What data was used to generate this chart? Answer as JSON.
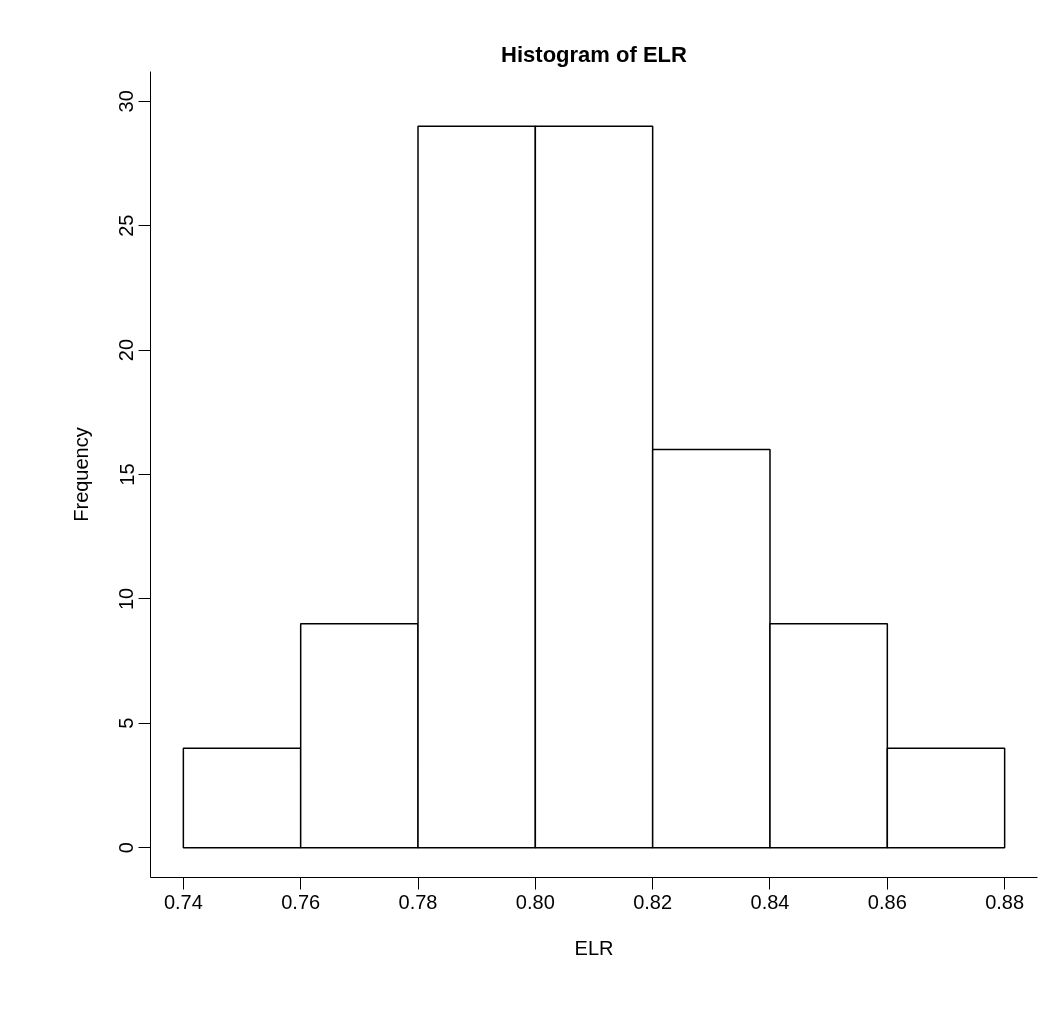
{
  "chart_data": {
    "type": "histogram",
    "title": "Histogram of ELR",
    "xlabel": "ELR",
    "ylabel": "Frequency",
    "bins": [
      0.74,
      0.76,
      0.78,
      0.8,
      0.82,
      0.84,
      0.86,
      0.88
    ],
    "values": [
      4,
      9,
      29,
      29,
      16,
      9,
      4
    ],
    "color": "#ffffff",
    "xlim": [
      0.7344,
      0.8856
    ],
    "ylim": [
      -1.2,
      31.2
    ],
    "xticks": [
      {
        "value": 0.74,
        "label": "0.74"
      },
      {
        "value": 0.76,
        "label": "0.76"
      },
      {
        "value": 0.78,
        "label": "0.78"
      },
      {
        "value": 0.8,
        "label": "0.80"
      },
      {
        "value": 0.82,
        "label": "0.82"
      },
      {
        "value": 0.84,
        "label": "0.84"
      },
      {
        "value": 0.86,
        "label": "0.86"
      },
      {
        "value": 0.88,
        "label": "0.88"
      }
    ],
    "yticks": [
      0,
      5,
      10,
      15,
      20,
      25,
      30
    ],
    "grid": false
  }
}
